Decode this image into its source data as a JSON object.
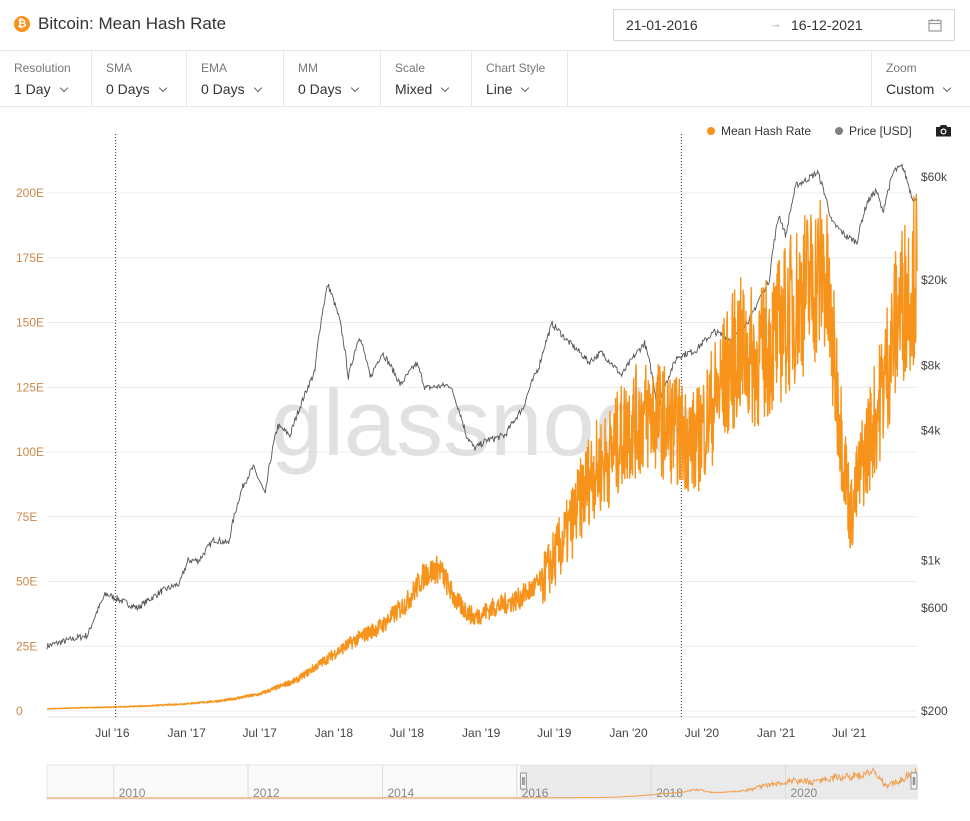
{
  "header": {
    "coin_symbol": "₿",
    "title": "Bitcoin: Mean Hash Rate",
    "date_start": "21-01-2016",
    "date_arrow": "→",
    "date_end": "16-12-2021",
    "calendar_icon": "calendar-icon"
  },
  "toolbar": [
    {
      "label": "Resolution",
      "value": "1 Day"
    },
    {
      "label": "SMA",
      "value": "0 Days"
    },
    {
      "label": "EMA",
      "value": "0 Days"
    },
    {
      "label": "MM",
      "value": "0 Days"
    },
    {
      "label": "Scale",
      "value": "Mixed"
    },
    {
      "label": "Chart Style",
      "value": "Line"
    }
  ],
  "zoom": {
    "label": "Zoom",
    "value": "Custom"
  },
  "legend": [
    {
      "name": "Mean Hash Rate",
      "color": "#f7931a"
    },
    {
      "name": "Price [USD]",
      "color": "#7f7f7f"
    }
  ],
  "camera_icon": "camera-icon",
  "watermark": "glassnode",
  "chart_data": {
    "type": "line",
    "title": "Bitcoin: Mean Hash Rate",
    "x_tick_labels": [
      "Jul '16",
      "Jan '17",
      "Jul '17",
      "Jan '18",
      "Jul '18",
      "Jan '19",
      "Jul '19",
      "Jan '20",
      "Jul '20",
      "Jan '21",
      "Jul '21"
    ],
    "y_left_tick_labels": [
      "0",
      "25E",
      "50E",
      "75E",
      "100E",
      "125E",
      "150E",
      "175E",
      "200E"
    ],
    "y_left_range": [
      0,
      200
    ],
    "y_left_unit": "EH/s",
    "y_right_tick_labels": [
      "$200",
      "$600",
      "$1k",
      "$4k",
      "$8k",
      "$20k",
      "$60k"
    ],
    "y_right_scale": "log",
    "y_right_range": [
      200,
      60000
    ],
    "x_range": [
      "2016-01-21",
      "2021-12-16"
    ],
    "event_markers": [
      "2016-07-09",
      "2020-05-11"
    ],
    "grid": true,
    "legend_position": "top-right",
    "series": [
      {
        "name": "Mean Hash Rate",
        "axis": "left",
        "color": "#f7931a",
        "points": [
          [
            "2016-01-21",
            0.8
          ],
          [
            "2016-04-01",
            1.2
          ],
          [
            "2016-07-01",
            1.5
          ],
          [
            "2016-10-01",
            2.0
          ],
          [
            "2017-01-01",
            2.8
          ],
          [
            "2017-04-01",
            4.0
          ],
          [
            "2017-07-01",
            6.5
          ],
          [
            "2017-10-01",
            12
          ],
          [
            "2018-01-01",
            22
          ],
          [
            "2018-03-01",
            28
          ],
          [
            "2018-05-01",
            33
          ],
          [
            "2018-07-01",
            42
          ],
          [
            "2018-08-15",
            53
          ],
          [
            "2018-09-20",
            55
          ],
          [
            "2018-11-01",
            42
          ],
          [
            "2018-12-15",
            36
          ],
          [
            "2019-02-01",
            40
          ],
          [
            "2019-04-01",
            43
          ],
          [
            "2019-06-01",
            50
          ],
          [
            "2019-08-01",
            68
          ],
          [
            "2019-10-01",
            92
          ],
          [
            "2019-11-15",
            98
          ],
          [
            "2020-01-01",
            110
          ],
          [
            "2020-03-01",
            115
          ],
          [
            "2020-05-01",
            108
          ],
          [
            "2020-06-15",
            103
          ],
          [
            "2020-08-01",
            120
          ],
          [
            "2020-10-01",
            140
          ],
          [
            "2020-11-15",
            135
          ],
          [
            "2021-01-01",
            145
          ],
          [
            "2021-03-01",
            160
          ],
          [
            "2021-05-01",
            170
          ],
          [
            "2021-06-20",
            95
          ],
          [
            "2021-07-05",
            75
          ],
          [
            "2021-08-01",
            95
          ],
          [
            "2021-09-15",
            120
          ],
          [
            "2021-11-01",
            155
          ],
          [
            "2021-12-16",
            170
          ]
        ]
      },
      {
        "name": "Price [USD]",
        "axis": "right",
        "color": "#555555",
        "points": [
          [
            "2016-01-21",
            400
          ],
          [
            "2016-03-01",
            420
          ],
          [
            "2016-05-01",
            450
          ],
          [
            "2016-06-15",
            700
          ],
          [
            "2016-07-15",
            660
          ],
          [
            "2016-09-01",
            600
          ],
          [
            "2016-11-01",
            720
          ],
          [
            "2016-12-15",
            780
          ],
          [
            "2017-01-05",
            1000
          ],
          [
            "2017-02-01",
            1000
          ],
          [
            "2017-03-10",
            1250
          ],
          [
            "2017-04-15",
            1200
          ],
          [
            "2017-05-20",
            2200
          ],
          [
            "2017-06-15",
            2700
          ],
          [
            "2017-07-15",
            2000
          ],
          [
            "2017-08-15",
            4200
          ],
          [
            "2017-09-15",
            3800
          ],
          [
            "2017-10-15",
            5500
          ],
          [
            "2017-11-15",
            7500
          ],
          [
            "2017-12-17",
            19000
          ],
          [
            "2018-01-15",
            13000
          ],
          [
            "2018-02-06",
            7000
          ],
          [
            "2018-03-05",
            11000
          ],
          [
            "2018-04-01",
            7000
          ],
          [
            "2018-05-01",
            9200
          ],
          [
            "2018-06-15",
            6500
          ],
          [
            "2018-07-25",
            8200
          ],
          [
            "2018-08-15",
            6300
          ],
          [
            "2018-10-15",
            6500
          ],
          [
            "2018-11-25",
            3800
          ],
          [
            "2018-12-15",
            3300
          ],
          [
            "2019-01-15",
            3600
          ],
          [
            "2019-03-01",
            3800
          ],
          [
            "2019-04-15",
            5100
          ],
          [
            "2019-05-25",
            8000
          ],
          [
            "2019-06-26",
            12500
          ],
          [
            "2019-08-01",
            10500
          ],
          [
            "2019-09-25",
            8300
          ],
          [
            "2019-10-26",
            9200
          ],
          [
            "2019-12-15",
            7200
          ],
          [
            "2020-02-10",
            10200
          ],
          [
            "2020-03-13",
            5000
          ],
          [
            "2020-05-01",
            8800
          ],
          [
            "2020-06-15",
            9400
          ],
          [
            "2020-08-01",
            11500
          ],
          [
            "2020-09-15",
            10500
          ],
          [
            "2020-11-01",
            13500
          ],
          [
            "2020-12-15",
            20000
          ],
          [
            "2021-01-08",
            40000
          ],
          [
            "2021-01-25",
            32000
          ],
          [
            "2021-02-20",
            55000
          ],
          [
            "2021-03-15",
            58000
          ],
          [
            "2021-04-14",
            63000
          ],
          [
            "2021-05-19",
            37000
          ],
          [
            "2021-06-22",
            32000
          ],
          [
            "2021-07-20",
            30000
          ],
          [
            "2021-08-15",
            46000
          ],
          [
            "2021-09-06",
            52000
          ],
          [
            "2021-09-22",
            41000
          ],
          [
            "2021-10-20",
            64000
          ],
          [
            "2021-11-10",
            67000
          ],
          [
            "2021-12-04",
            48000
          ],
          [
            "2021-12-16",
            47000
          ]
        ]
      }
    ],
    "navigator": {
      "x_tick_labels": [
        "2010",
        "2012",
        "2014",
        "2016",
        "2018",
        "2020"
      ],
      "x_range": [
        "2009-01-03",
        "2021-12-16"
      ],
      "selection": [
        "2016-01-21",
        "2021-12-16"
      ]
    }
  }
}
